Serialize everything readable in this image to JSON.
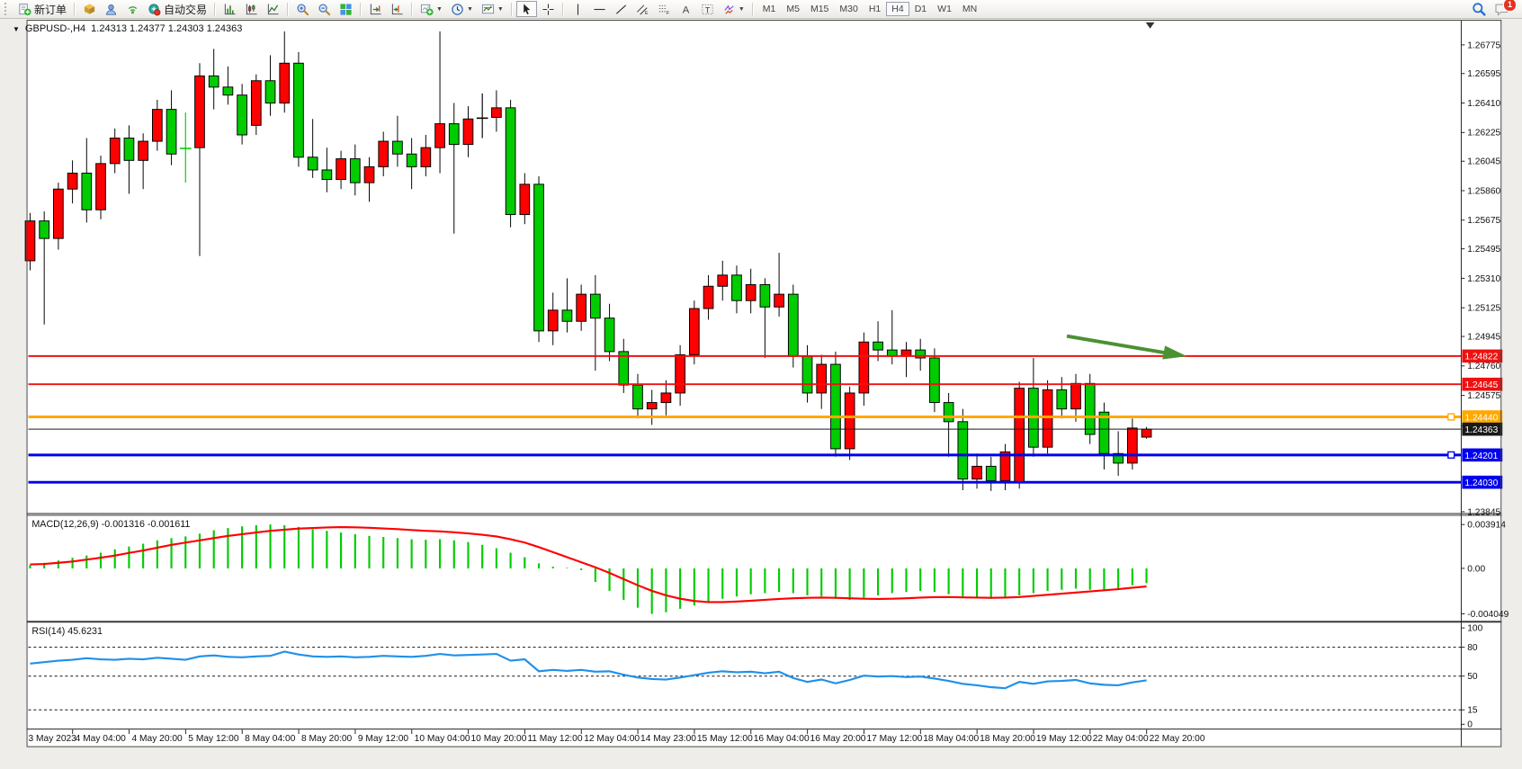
{
  "window": {
    "symbol_title": "GBPUSD-,H4",
    "ohlc_title": "1.24313 1.24377 1.24303 1.24363"
  },
  "toolbar": {
    "new_order_label": "新订单",
    "auto_trading_label": "自动交易",
    "timeframes": [
      "M1",
      "M5",
      "M15",
      "M30",
      "H1",
      "H4",
      "D1",
      "W1",
      "MN"
    ],
    "active_timeframe": "H4",
    "notification_count": "1"
  },
  "price_axis": {
    "ticks": [
      "1.26775",
      "1.26595",
      "1.26410",
      "1.26225",
      "1.26045",
      "1.25860",
      "1.25675",
      "1.25495",
      "1.25310",
      "1.25125",
      "1.24945",
      "1.24760",
      "1.24575",
      "1.24385",
      "1.23845"
    ]
  },
  "time_axis": {
    "first_label": "3 May 2023",
    "labels": [
      "4 May 04:00",
      "4 May 20:00",
      "5 May 12:00",
      "8 May 04:00",
      "8 May 20:00",
      "9 May 12:00",
      "10 May 04:00",
      "10 May 20:00",
      "11 May 12:00",
      "12 May 04:00",
      "14 May 23:00",
      "15 May 12:00",
      "16 May 04:00",
      "16 May 20:00",
      "17 May 12:00",
      "18 May 04:00",
      "18 May 20:00",
      "19 May 12:00",
      "22 May 04:00",
      "22 May 20:00"
    ]
  },
  "hlines": [
    {
      "price": "1.24822",
      "value": 1.24822,
      "color": "#ee1111",
      "width": 2,
      "handle": false
    },
    {
      "price": "1.24645",
      "value": 1.24645,
      "color": "#ee1111",
      "width": 2,
      "handle": false
    },
    {
      "price": "1.24440",
      "value": 1.2444,
      "color": "#ffa800",
      "width": 3,
      "handle": true
    },
    {
      "price": "1.24363",
      "value": 1.24363,
      "color": "#1a1a1a",
      "width": 1,
      "handle": false
    },
    {
      "price": "1.24201",
      "value": 1.24201,
      "color": "#0000ee",
      "width": 3,
      "handle": true
    },
    {
      "price": "1.24030",
      "value": 1.2403,
      "color": "#0000ee",
      "width": 3,
      "handle": false
    }
  ],
  "indicators": {
    "macd": {
      "label": "MACD(12,26,9) -0.001316 -0.001611",
      "axis_max": "0.003914",
      "axis_zero": "0.00",
      "axis_min": "-0.004049"
    },
    "rsi": {
      "label": "RSI(14) 45.6231",
      "axis_levels": [
        "100",
        "80",
        "50",
        "15",
        "0"
      ]
    }
  },
  "annotation": {
    "arrow_color": "#4a9132"
  },
  "chart_data": [
    {
      "type": "candlestick",
      "title": "GBPUSD-,H4",
      "symbol": "GBPUSD",
      "timeframe": "H4",
      "up_color": "#ff0000",
      "down_color": "#00cc00",
      "x_range": [
        "3 May 2023",
        "22 May 2023 20:00"
      ],
      "y_range": [
        1.23836,
        1.26932
      ],
      "levels": [
        1.24822,
        1.24645,
        1.2444,
        1.24363,
        1.24201,
        1.2403
      ],
      "candles": [
        [
          1.2542,
          1.2572,
          1.2536,
          1.2567
        ],
        [
          1.2567,
          1.2573,
          1.2502,
          1.2556
        ],
        [
          1.2556,
          1.2591,
          1.2549,
          1.2587
        ],
        [
          1.2587,
          1.2605,
          1.2578,
          1.2597
        ],
        [
          1.2597,
          1.2619,
          1.2566,
          1.2574
        ],
        [
          1.2574,
          1.2608,
          1.2568,
          1.2603
        ],
        [
          1.2603,
          1.2625,
          1.2597,
          1.2619
        ],
        [
          1.2619,
          1.2627,
          1.2584,
          1.2605
        ],
        [
          1.2605,
          1.2622,
          1.2587,
          1.2617
        ],
        [
          1.2617,
          1.2643,
          1.2611,
          1.2637
        ],
        [
          1.2637,
          1.2649,
          1.2602,
          1.2609
        ],
        [
          1.2612,
          1.2635,
          1.2591,
          1.2613
        ],
        [
          1.2613,
          1.2666,
          1.2545,
          1.2658
        ],
        [
          1.2658,
          1.2675,
          1.2637,
          1.2651
        ],
        [
          1.2651,
          1.2664,
          1.264,
          1.2646
        ],
        [
          1.2646,
          1.2653,
          1.2615,
          1.2621
        ],
        [
          1.2627,
          1.2659,
          1.2621,
          1.2655
        ],
        [
          1.2655,
          1.2671,
          1.2633,
          1.2641
        ],
        [
          1.2641,
          1.2686,
          1.2635,
          1.2666
        ],
        [
          1.2666,
          1.2673,
          1.2601,
          1.2607
        ],
        [
          1.2607,
          1.2631,
          1.2594,
          1.2599
        ],
        [
          1.2599,
          1.2613,
          1.2585,
          1.2593
        ],
        [
          1.2593,
          1.2611,
          1.2587,
          1.2606
        ],
        [
          1.2606,
          1.2615,
          1.2583,
          1.2591
        ],
        [
          1.2591,
          1.2607,
          1.2579,
          1.2601
        ],
        [
          1.2601,
          1.2623,
          1.2595,
          1.2617
        ],
        [
          1.2617,
          1.2633,
          1.2601,
          1.2609
        ],
        [
          1.2609,
          1.2619,
          1.2587,
          1.2601
        ],
        [
          1.2601,
          1.2621,
          1.2595,
          1.2613
        ],
        [
          1.2613,
          1.2686,
          1.2597,
          1.2628
        ],
        [
          1.2628,
          1.2641,
          1.2559,
          1.2615
        ],
        [
          1.2615,
          1.2639,
          1.2607,
          1.2631
        ],
        [
          1.2631,
          1.2647,
          1.2619,
          1.2632
        ],
        [
          1.2632,
          1.2649,
          1.2623,
          1.2638
        ],
        [
          1.2638,
          1.2643,
          1.2563,
          1.2571
        ],
        [
          1.2571,
          1.2597,
          1.2565,
          1.259
        ],
        [
          1.259,
          1.2595,
          1.2491,
          1.2498
        ],
        [
          1.2498,
          1.2522,
          1.2489,
          1.2511
        ],
        [
          1.2511,
          1.2531,
          1.2497,
          1.2504
        ],
        [
          1.2504,
          1.2527,
          1.2498,
          1.2521
        ],
        [
          1.2521,
          1.2533,
          1.2473,
          1.2506
        ],
        [
          1.2506,
          1.2515,
          1.2479,
          1.2485
        ],
        [
          1.2485,
          1.2493,
          1.2459,
          1.2464
        ],
        [
          1.2464,
          1.2471,
          1.2443,
          1.2449
        ],
        [
          1.2449,
          1.2461,
          1.2439,
          1.2453
        ],
        [
          1.2453,
          1.2467,
          1.2445,
          1.2459
        ],
        [
          1.2459,
          1.2489,
          1.2451,
          1.2483
        ],
        [
          1.2483,
          1.2517,
          1.2477,
          1.2512
        ],
        [
          1.2512,
          1.2533,
          1.2505,
          1.2526
        ],
        [
          1.2526,
          1.2542,
          1.2517,
          1.2533
        ],
        [
          1.2533,
          1.2539,
          1.2509,
          1.2517
        ],
        [
          1.2517,
          1.2537,
          1.2509,
          1.2527
        ],
        [
          1.2527,
          1.2531,
          1.2481,
          1.2513
        ],
        [
          1.2513,
          1.2547,
          1.2507,
          1.2521
        ],
        [
          1.2521,
          1.2527,
          1.2475,
          1.2482
        ],
        [
          1.2482,
          1.2489,
          1.2453,
          1.2459
        ],
        [
          1.2459,
          1.2483,
          1.2449,
          1.2477
        ],
        [
          1.2477,
          1.2485,
          1.2419,
          1.2424
        ],
        [
          1.2424,
          1.2463,
          1.2417,
          1.2459
        ],
        [
          1.2459,
          1.2497,
          1.2451,
          1.2491
        ],
        [
          1.2491,
          1.2504,
          1.2479,
          1.2486
        ],
        [
          1.2486,
          1.2511,
          1.2477,
          1.2482
        ],
        [
          1.2482,
          1.2491,
          1.2469,
          1.2486
        ],
        [
          1.2486,
          1.2493,
          1.2473,
          1.2481
        ],
        [
          1.2481,
          1.2487,
          1.2447,
          1.2453
        ],
        [
          1.2453,
          1.2459,
          1.2419,
          1.2441
        ],
        [
          1.2441,
          1.2449,
          1.2398,
          1.2405
        ],
        [
          1.2405,
          1.2421,
          1.2399,
          1.2413
        ],
        [
          1.2413,
          1.2419,
          1.23975,
          1.2404
        ],
        [
          1.2404,
          1.2427,
          1.2398,
          1.2422
        ],
        [
          1.2403,
          1.2466,
          1.2399,
          1.2462
        ],
        [
          1.2462,
          1.2481,
          1.2419,
          1.2425
        ],
        [
          1.2425,
          1.2467,
          1.2421,
          1.2461
        ],
        [
          1.2461,
          1.2469,
          1.2443,
          1.2449
        ],
        [
          1.2449,
          1.2471,
          1.2441,
          1.2465
        ],
        [
          1.2465,
          1.2471,
          1.2427,
          1.2433
        ],
        [
          1.2447,
          1.2453,
          1.2411,
          1.2421
        ],
        [
          1.2421,
          1.2435,
          1.2407,
          1.2415
        ],
        [
          1.2415,
          1.2443,
          1.2411,
          1.2437
        ],
        [
          1.24313,
          1.24377,
          1.24303,
          1.24363
        ]
      ],
      "doji_overrides": {
        "11": "#00cc00",
        "32": "#000000"
      }
    },
    {
      "type": "bar",
      "name": "MACD(12,26,9)",
      "bar_color": "#00cc00",
      "signal_color": "#ff0000",
      "ylim": [
        -0.004049,
        0.003914
      ],
      "values": [
        0.0003,
        0.0005,
        0.0007,
        0.00095,
        0.00115,
        0.0014,
        0.0017,
        0.00195,
        0.0022,
        0.0025,
        0.0027,
        0.00285,
        0.0031,
        0.0034,
        0.0036,
        0.00375,
        0.00385,
        0.003914,
        0.00385,
        0.0037,
        0.0035,
        0.00335,
        0.0032,
        0.00305,
        0.0029,
        0.0028,
        0.0027,
        0.0026,
        0.00255,
        0.0026,
        0.0025,
        0.00235,
        0.0021,
        0.0018,
        0.0014,
        0.001,
        0.00045,
        0.00015,
        5e-05,
        -0.00015,
        -0.0012,
        -0.002,
        -0.0028,
        -0.0035,
        -0.004049,
        -0.0039,
        -0.0036,
        -0.0033,
        -0.003,
        -0.0027,
        -0.0025,
        -0.0023,
        -0.0022,
        -0.0021,
        -0.0022,
        -0.0024,
        -0.0025,
        -0.0027,
        -0.0028,
        -0.0026,
        -0.0024,
        -0.0022,
        -0.0021,
        -0.002,
        -0.0021,
        -0.0023,
        -0.0025,
        -0.0026,
        -0.0027,
        -0.0026,
        -0.0024,
        -0.0022,
        -0.002,
        -0.0019,
        -0.0018,
        -0.0019,
        -0.002,
        -0.0018,
        -0.0015,
        -0.001316
      ],
      "signal": [
        0.00035,
        0.0004,
        0.0005,
        0.00062,
        0.00078,
        0.00095,
        0.00115,
        0.00138,
        0.0016,
        0.00185,
        0.0021,
        0.0023,
        0.0025,
        0.0027,
        0.0029,
        0.00305,
        0.0032,
        0.00335,
        0.00345,
        0.00355,
        0.0036,
        0.00365,
        0.00368,
        0.00366,
        0.00362,
        0.00356,
        0.0035,
        0.00342,
        0.00335,
        0.0033,
        0.00322,
        0.00312,
        0.003,
        0.00285,
        0.0026,
        0.0023,
        0.0019,
        0.00145,
        0.001,
        0.00055,
        0.0001,
        -0.0004,
        -0.00095,
        -0.0015,
        -0.002,
        -0.0024,
        -0.0027,
        -0.0029,
        -0.003,
        -0.003,
        -0.00295,
        -0.00288,
        -0.0028,
        -0.00272,
        -0.00266,
        -0.00262,
        -0.0026,
        -0.00262,
        -0.00266,
        -0.0027,
        -0.00272,
        -0.0027,
        -0.00266,
        -0.0026,
        -0.00256,
        -0.00255,
        -0.00258,
        -0.0026,
        -0.00262,
        -0.0026,
        -0.00255,
        -0.00245,
        -0.00235,
        -0.00225,
        -0.00215,
        -0.00205,
        -0.00195,
        -0.00185,
        -0.00172,
        -0.001611
      ]
    },
    {
      "type": "line",
      "name": "RSI(14)",
      "color": "#2090e8",
      "ylim": [
        0,
        100
      ],
      "levels": [
        80,
        50,
        15
      ],
      "values": [
        63,
        64.5,
        66,
        67,
        68.5,
        67.5,
        67,
        68,
        67.5,
        69,
        68,
        67,
        70.5,
        71.5,
        70,
        69.5,
        70.5,
        71,
        75.5,
        72.5,
        70.5,
        70,
        70.5,
        69.5,
        70,
        71,
        70.5,
        70,
        71,
        73,
        71.5,
        72,
        72.5,
        73,
        66,
        67.5,
        55,
        56.5,
        55.5,
        56.5,
        54.5,
        55,
        51.5,
        48.5,
        47,
        46.5,
        48.5,
        51,
        53.5,
        55,
        54,
        54.5,
        53,
        54.5,
        48,
        44,
        46.5,
        42.5,
        46,
        50.5,
        49.5,
        50,
        49,
        49.5,
        47.5,
        45,
        42,
        40.5,
        38.5,
        37.5,
        44,
        42,
        44.5,
        45,
        46,
        42.5,
        41,
        40.5,
        43.5,
        45.62
      ]
    }
  ]
}
